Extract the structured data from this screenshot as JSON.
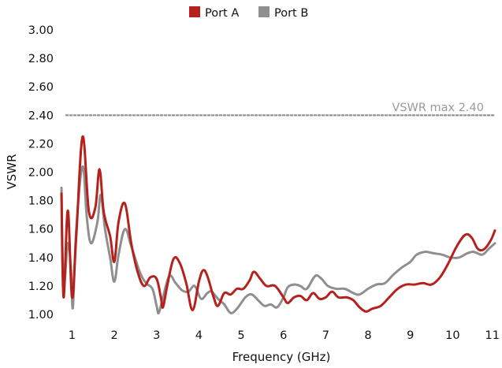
{
  "chart_data": {
    "type": "line",
    "title": "",
    "xlabel": "Frequency (GHz)",
    "ylabel": "VSWR",
    "xlim": [
      0.75,
      11
    ],
    "ylim": [
      1.0,
      3.0
    ],
    "x_ticks": [
      1,
      2,
      3,
      4,
      5,
      6,
      7,
      8,
      9,
      10,
      11
    ],
    "x_tick_labels": [
      "1",
      "2",
      "3",
      "4",
      "5",
      "6",
      "7",
      "8",
      "9",
      "10",
      "11"
    ],
    "y_ticks": [
      1.0,
      1.2,
      1.4,
      1.6,
      1.8,
      2.0,
      2.2,
      2.4,
      2.6,
      2.8,
      3.0
    ],
    "y_tick_labels": [
      "1.00",
      "1.20",
      "1.40",
      "1.60",
      "1.80",
      "2.00",
      "2.20",
      "2.40",
      "2.60",
      "2.80",
      "3.00"
    ],
    "grid": false,
    "legend_position": "top-center",
    "reference_line": {
      "y": 2.4,
      "label": "VSWR max 2.40",
      "color": "#9a9a9a",
      "style": "dotted"
    },
    "series": [
      {
        "name": "Port A",
        "color": "#b5211c",
        "points": [
          [
            0.75,
            1.85
          ],
          [
            0.8,
            1.12
          ],
          [
            0.9,
            1.73
          ],
          [
            1.0,
            1.12
          ],
          [
            1.1,
            1.55
          ],
          [
            1.25,
            2.25
          ],
          [
            1.4,
            1.72
          ],
          [
            1.55,
            1.75
          ],
          [
            1.65,
            2.02
          ],
          [
            1.75,
            1.72
          ],
          [
            1.9,
            1.55
          ],
          [
            2.0,
            1.37
          ],
          [
            2.1,
            1.65
          ],
          [
            2.25,
            1.78
          ],
          [
            2.4,
            1.5
          ],
          [
            2.55,
            1.3
          ],
          [
            2.7,
            1.2
          ],
          [
            2.85,
            1.26
          ],
          [
            3.0,
            1.25
          ],
          [
            3.1,
            1.12
          ],
          [
            3.15,
            1.05
          ],
          [
            3.25,
            1.2
          ],
          [
            3.4,
            1.39
          ],
          [
            3.55,
            1.36
          ],
          [
            3.7,
            1.22
          ],
          [
            3.85,
            1.03
          ],
          [
            4.0,
            1.23
          ],
          [
            4.1,
            1.31
          ],
          [
            4.2,
            1.27
          ],
          [
            4.35,
            1.12
          ],
          [
            4.45,
            1.06
          ],
          [
            4.6,
            1.15
          ],
          [
            4.75,
            1.14
          ],
          [
            4.9,
            1.18
          ],
          [
            5.05,
            1.18
          ],
          [
            5.2,
            1.24
          ],
          [
            5.3,
            1.3
          ],
          [
            5.45,
            1.25
          ],
          [
            5.6,
            1.2
          ],
          [
            5.8,
            1.2
          ],
          [
            6.0,
            1.12
          ],
          [
            6.1,
            1.08
          ],
          [
            6.25,
            1.12
          ],
          [
            6.4,
            1.13
          ],
          [
            6.55,
            1.1
          ],
          [
            6.7,
            1.15
          ],
          [
            6.85,
            1.11
          ],
          [
            7.0,
            1.12
          ],
          [
            7.15,
            1.16
          ],
          [
            7.3,
            1.12
          ],
          [
            7.5,
            1.12
          ],
          [
            7.65,
            1.1
          ],
          [
            7.8,
            1.05
          ],
          [
            7.95,
            1.02
          ],
          [
            8.1,
            1.04
          ],
          [
            8.3,
            1.06
          ],
          [
            8.5,
            1.12
          ],
          [
            8.7,
            1.18
          ],
          [
            8.9,
            1.21
          ],
          [
            9.1,
            1.21
          ],
          [
            9.3,
            1.22
          ],
          [
            9.5,
            1.21
          ],
          [
            9.7,
            1.26
          ],
          [
            9.9,
            1.36
          ],
          [
            10.1,
            1.48
          ],
          [
            10.3,
            1.56
          ],
          [
            10.45,
            1.54
          ],
          [
            10.6,
            1.46
          ],
          [
            10.75,
            1.46
          ],
          [
            10.9,
            1.52
          ],
          [
            11.0,
            1.59
          ]
        ]
      },
      {
        "name": "Port B",
        "color": "#8f8f8f",
        "points": [
          [
            0.75,
            1.89
          ],
          [
            0.8,
            1.2
          ],
          [
            0.9,
            1.5
          ],
          [
            0.98,
            1.3
          ],
          [
            1.02,
            1.05
          ],
          [
            1.1,
            1.6
          ],
          [
            1.25,
            2.04
          ],
          [
            1.35,
            1.68
          ],
          [
            1.45,
            1.5
          ],
          [
            1.6,
            1.65
          ],
          [
            1.68,
            1.84
          ],
          [
            1.78,
            1.6
          ],
          [
            1.9,
            1.4
          ],
          [
            2.0,
            1.23
          ],
          [
            2.1,
            1.42
          ],
          [
            2.25,
            1.6
          ],
          [
            2.4,
            1.48
          ],
          [
            2.6,
            1.3
          ],
          [
            2.75,
            1.22
          ],
          [
            2.9,
            1.18
          ],
          [
            3.0,
            1.06
          ],
          [
            3.05,
            1.01
          ],
          [
            3.15,
            1.12
          ],
          [
            3.3,
            1.27
          ],
          [
            3.45,
            1.22
          ],
          [
            3.6,
            1.17
          ],
          [
            3.75,
            1.16
          ],
          [
            3.9,
            1.2
          ],
          [
            4.05,
            1.11
          ],
          [
            4.2,
            1.15
          ],
          [
            4.3,
            1.16
          ],
          [
            4.45,
            1.11
          ],
          [
            4.6,
            1.07
          ],
          [
            4.75,
            1.01
          ],
          [
            4.9,
            1.04
          ],
          [
            5.1,
            1.12
          ],
          [
            5.25,
            1.14
          ],
          [
            5.4,
            1.1
          ],
          [
            5.55,
            1.06
          ],
          [
            5.7,
            1.07
          ],
          [
            5.85,
            1.05
          ],
          [
            6.0,
            1.12
          ],
          [
            6.1,
            1.19
          ],
          [
            6.25,
            1.21
          ],
          [
            6.4,
            1.2
          ],
          [
            6.55,
            1.18
          ],
          [
            6.75,
            1.27
          ],
          [
            6.9,
            1.25
          ],
          [
            7.05,
            1.2
          ],
          [
            7.25,
            1.18
          ],
          [
            7.45,
            1.18
          ],
          [
            7.65,
            1.15
          ],
          [
            7.8,
            1.14
          ],
          [
            8.0,
            1.18
          ],
          [
            8.2,
            1.21
          ],
          [
            8.4,
            1.22
          ],
          [
            8.6,
            1.28
          ],
          [
            8.8,
            1.33
          ],
          [
            9.0,
            1.37
          ],
          [
            9.15,
            1.42
          ],
          [
            9.35,
            1.44
          ],
          [
            9.55,
            1.43
          ],
          [
            9.75,
            1.42
          ],
          [
            9.95,
            1.4
          ],
          [
            10.15,
            1.4
          ],
          [
            10.35,
            1.43
          ],
          [
            10.5,
            1.44
          ],
          [
            10.7,
            1.42
          ],
          [
            10.85,
            1.46
          ],
          [
            11.0,
            1.5
          ]
        ]
      }
    ]
  }
}
